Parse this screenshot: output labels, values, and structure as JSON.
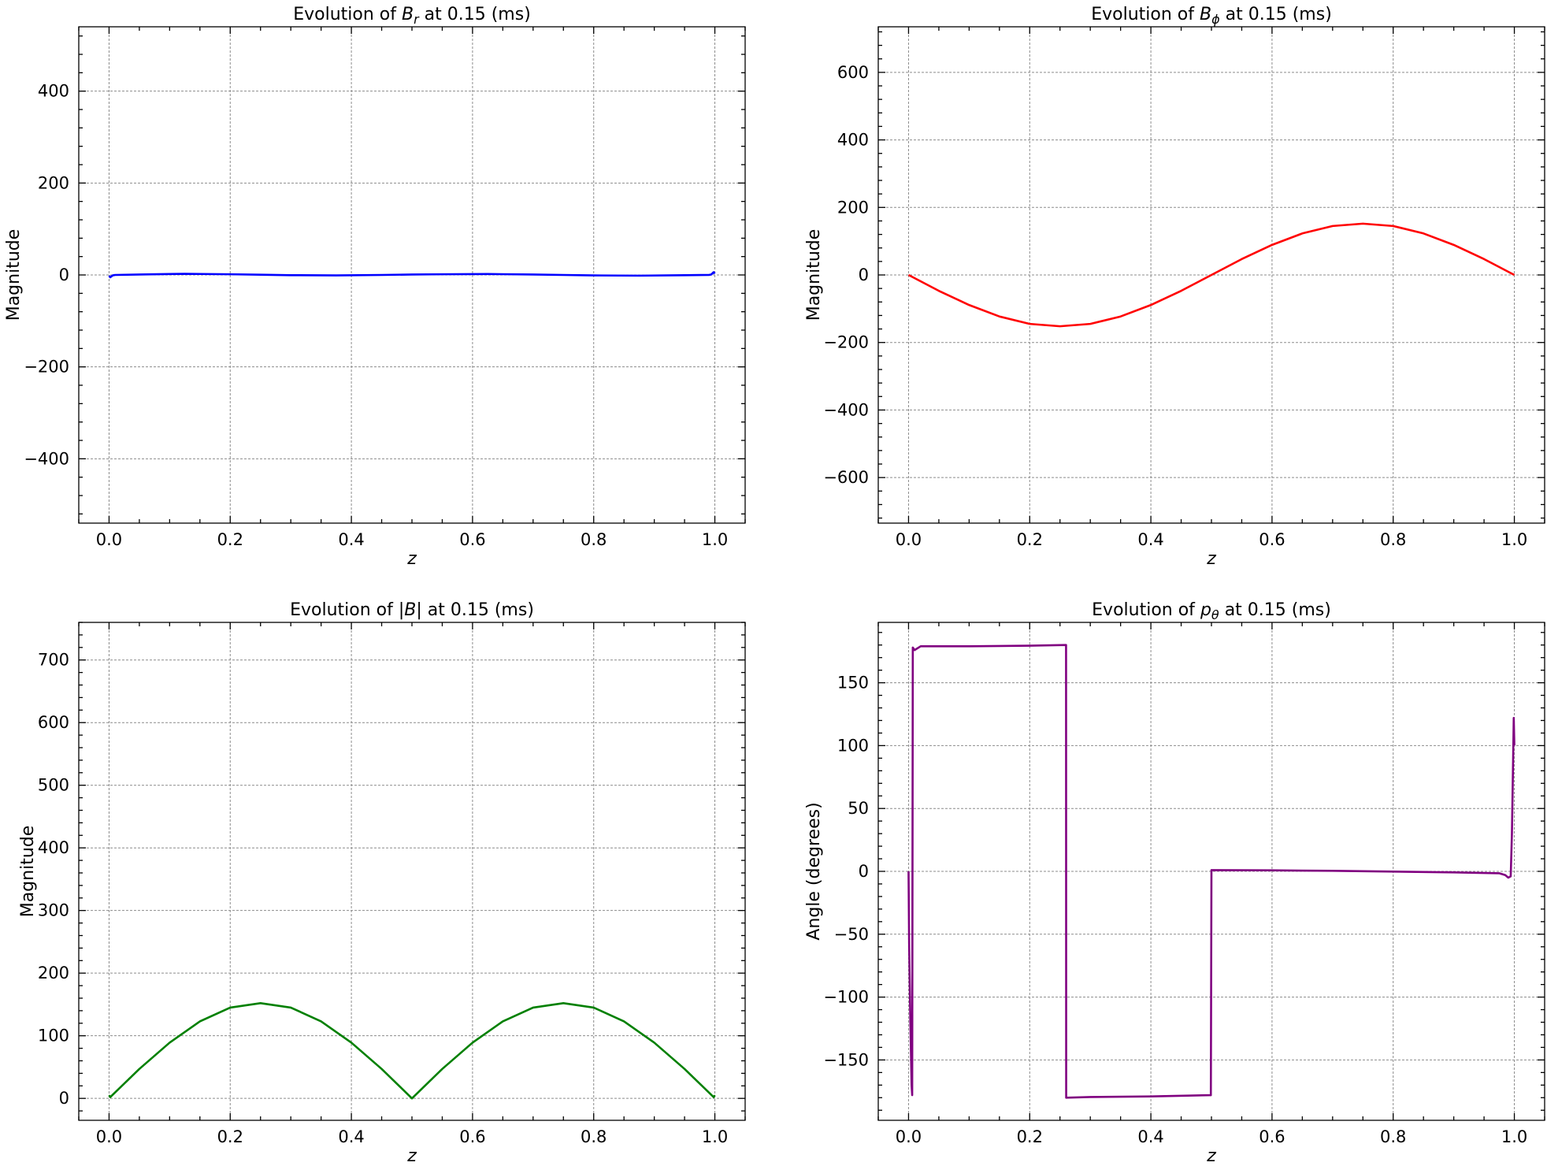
{
  "chart_data": [
    {
      "type": "line",
      "title_parts": [
        {
          "t": "Evolution of "
        },
        {
          "t": "B",
          "i": true
        },
        {
          "t": "r",
          "i": true,
          "sub": true
        },
        {
          "t": " at 0.15 (ms)"
        }
      ],
      "xlabel": "z",
      "ylabel": "Magnitude",
      "xlim": [
        -0.05,
        1.05
      ],
      "ylim": [
        -540,
        540
      ],
      "xticks": [
        0.0,
        0.2,
        0.4,
        0.6,
        0.8,
        1.0
      ],
      "yticks": [
        -400,
        -200,
        0,
        200,
        400
      ],
      "grid": true,
      "series": [
        {
          "color": "#0000ff",
          "x": [
            0.0,
            0.002,
            0.006,
            0.01,
            0.05,
            0.1,
            0.125,
            0.2,
            0.25,
            0.3,
            0.375,
            0.45,
            0.5,
            0.55,
            0.625,
            0.7,
            0.75,
            0.8,
            0.875,
            0.95,
            0.99,
            0.994,
            0.998,
            1.0
          ],
          "y": [
            -2,
            -5,
            -1,
            0,
            1,
            2,
            2.5,
            1.5,
            0.5,
            -0.5,
            -1,
            0,
            1,
            1.5,
            2,
            1,
            0,
            -1,
            -1.5,
            -0.5,
            0,
            1,
            6,
            3
          ]
        }
      ]
    },
    {
      "type": "line",
      "title_parts": [
        {
          "t": "Evolution of "
        },
        {
          "t": "B",
          "i": true
        },
        {
          "t": "ϕ",
          "i": true,
          "sub": true
        },
        {
          "t": " at 0.15 (ms)"
        }
      ],
      "xlabel": "z",
      "ylabel": "Magnitude",
      "xlim": [
        -0.05,
        1.05
      ],
      "ylim": [
        -735,
        735
      ],
      "xticks": [
        0.0,
        0.2,
        0.4,
        0.6,
        0.8,
        1.0
      ],
      "yticks": [
        -600,
        -400,
        -200,
        0,
        200,
        400,
        600
      ],
      "grid": true,
      "series": [
        {
          "color": "#ff0000",
          "x": [
            0.0,
            0.05,
            0.1,
            0.15,
            0.2,
            0.25,
            0.3,
            0.35,
            0.4,
            0.45,
            0.5,
            0.55,
            0.6,
            0.65,
            0.7,
            0.75,
            0.8,
            0.85,
            0.9,
            0.95,
            1.0
          ],
          "y": [
            0,
            -47,
            -89,
            -123,
            -145,
            -152,
            -145,
            -123,
            -89,
            -47,
            0,
            47,
            89,
            123,
            145,
            152,
            145,
            123,
            89,
            47,
            0
          ]
        }
      ]
    },
    {
      "type": "line",
      "title_parts": [
        {
          "t": "Evolution of |"
        },
        {
          "t": "B",
          "i": true
        },
        {
          "t": "| at 0.15 (ms)"
        }
      ],
      "xlabel": "z",
      "ylabel": "Magnitude",
      "xlim": [
        -0.05,
        1.05
      ],
      "ylim": [
        -35,
        760
      ],
      "xticks": [
        0.0,
        0.2,
        0.4,
        0.6,
        0.8,
        1.0
      ],
      "yticks": [
        0,
        100,
        200,
        300,
        400,
        500,
        600,
        700
      ],
      "grid": true,
      "series": [
        {
          "color": "#008000",
          "x": [
            0.0,
            0.002,
            0.05,
            0.1,
            0.15,
            0.2,
            0.25,
            0.3,
            0.35,
            0.4,
            0.45,
            0.5,
            0.55,
            0.6,
            0.65,
            0.7,
            0.75,
            0.8,
            0.85,
            0.9,
            0.95,
            0.998,
            1.0
          ],
          "y": [
            5,
            2,
            47,
            89,
            123,
            145,
            152,
            145,
            123,
            89,
            47,
            0,
            47,
            89,
            123,
            145,
            152,
            145,
            123,
            89,
            47,
            2,
            5
          ]
        }
      ]
    },
    {
      "type": "line",
      "title_parts": [
        {
          "t": "Evolution of "
        },
        {
          "t": "p",
          "i": true
        },
        {
          "t": "θ",
          "i": true,
          "sub": true
        },
        {
          "t": " at 0.15 (ms)"
        }
      ],
      "xlabel": "z",
      "ylabel": "Angle (degrees)",
      "xlim": [
        -0.05,
        1.05
      ],
      "ylim": [
        -198,
        198
      ],
      "xticks": [
        0.0,
        0.2,
        0.4,
        0.6,
        0.8,
        1.0
      ],
      "yticks": [
        -150,
        -100,
        -50,
        0,
        50,
        100,
        150
      ],
      "grid": true,
      "series": [
        {
          "color": "#800080",
          "x": [
            0.0,
            0.001,
            0.003,
            0.005,
            0.006,
            0.007,
            0.01,
            0.02,
            0.1,
            0.2,
            0.26,
            0.2602,
            0.3,
            0.4,
            0.499,
            0.5,
            0.6,
            0.7,
            0.8,
            0.9,
            0.975,
            0.985,
            0.99,
            0.994,
            0.996,
            0.998,
            0.999,
            1.0
          ],
          "y": [
            0,
            -60,
            -120,
            -170,
            -178,
            178,
            176,
            179,
            179,
            179.5,
            180,
            -180,
            -179.5,
            -179,
            -178,
            1,
            0.8,
            0.4,
            -0.2,
            -0.8,
            -1.5,
            -3,
            -5,
            -4,
            30,
            90,
            122,
            100
          ]
        }
      ]
    }
  ]
}
